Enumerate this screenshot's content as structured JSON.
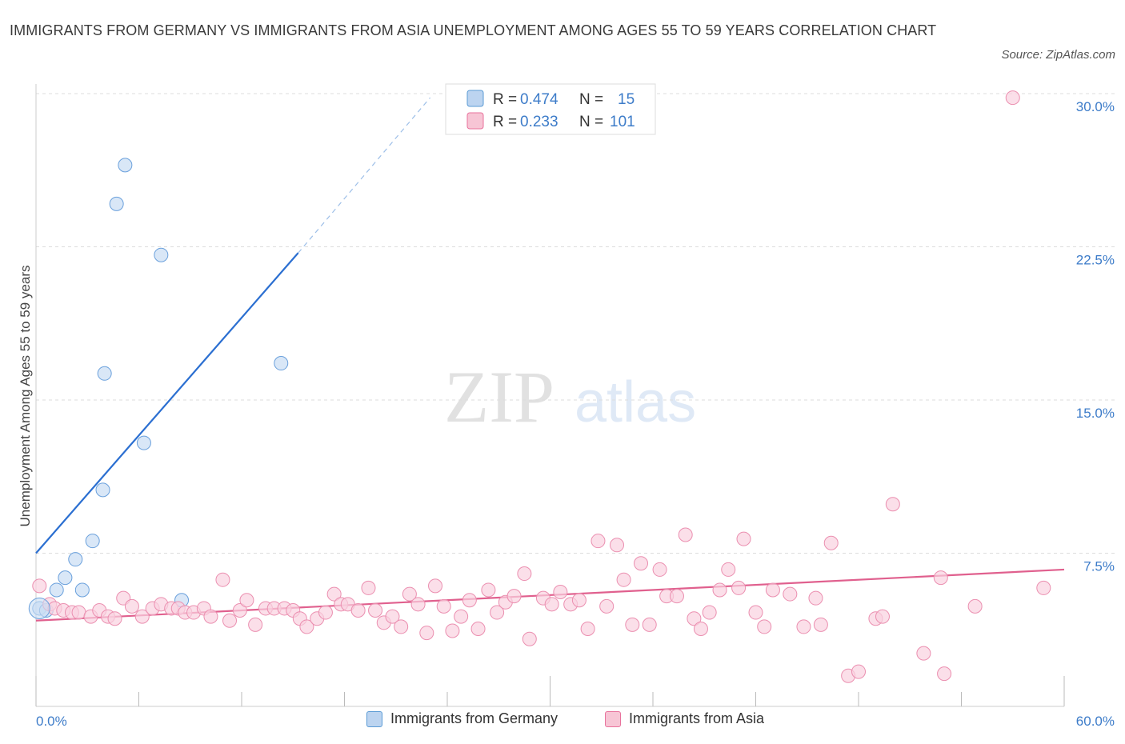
{
  "title": "IMMIGRANTS FROM GERMANY VS IMMIGRANTS FROM ASIA UNEMPLOYMENT AMONG AGES 55 TO 59 YEARS CORRELATION CHART",
  "source": "Source: ZipAtlas.com",
  "watermark": {
    "zip": "ZIP",
    "atlas": "atlas"
  },
  "colors": {
    "germany": "#5b9bd5",
    "germany_fill": "#bcd4f0",
    "germany_line": "#2b6fd1",
    "asia": "#e8729c",
    "asia_fill": "#f7c5d5",
    "asia_line": "#e0608e",
    "tick": "#3d7cc9"
  },
  "legend": {
    "rows": [
      {
        "r_label": "R =",
        "r_value": "0.474",
        "n_label": "N =",
        "n_value": "15"
      },
      {
        "r_label": "R =",
        "r_value": "0.233",
        "n_label": "N =",
        "n_value": "101"
      }
    ],
    "bottom": [
      "Immigrants from Germany",
      "Immigrants from Asia"
    ]
  },
  "chart_data": {
    "type": "scatter",
    "title": "IMMIGRANTS FROM GERMANY VS IMMIGRANTS FROM ASIA UNEMPLOYMENT AMONG AGES 55 TO 59 YEARS CORRELATION CHART",
    "xlabel": "",
    "ylabel": "Unemployment Among Ages 55 to 59 years",
    "xlim": [
      0,
      60
    ],
    "ylim": [
      0,
      30
    ],
    "x_tick_labels": [
      "0.0%",
      "60.0%"
    ],
    "y_ticks": [
      7.5,
      15.0,
      22.5,
      30.0
    ],
    "y_tick_labels": [
      "7.5%",
      "15.0%",
      "22.5%",
      "30.0%"
    ],
    "series": [
      {
        "name": "Immigrants from Germany",
        "R": 0.474,
        "N": 15,
        "trend": {
          "x": [
            0,
            15.3
          ],
          "y": [
            7.5,
            22.2
          ],
          "dashed_to": [
            23,
            29.8
          ]
        },
        "points": [
          [
            0.2,
            4.8
          ],
          [
            0.6,
            4.7
          ],
          [
            1.2,
            5.7
          ],
          [
            1.7,
            6.3
          ],
          [
            2.3,
            7.2
          ],
          [
            2.7,
            5.7
          ],
          [
            3.3,
            8.1
          ],
          [
            3.9,
            10.6
          ],
          [
            4.0,
            16.3
          ],
          [
            4.7,
            24.6
          ],
          [
            5.2,
            26.5
          ],
          [
            6.3,
            12.9
          ],
          [
            7.3,
            22.1
          ],
          [
            8.5,
            5.2
          ],
          [
            14.3,
            16.8
          ]
        ]
      },
      {
        "name": "Immigrants from Asia",
        "R": 0.233,
        "N": 101,
        "trend": {
          "x": [
            0,
            60
          ],
          "y": [
            4.2,
            6.7
          ]
        },
        "points": [
          [
            0.2,
            5.9
          ],
          [
            0.8,
            5.0
          ],
          [
            1.1,
            4.8
          ],
          [
            1.6,
            4.7
          ],
          [
            2.1,
            4.6
          ],
          [
            2.5,
            4.6
          ],
          [
            3.2,
            4.4
          ],
          [
            3.7,
            4.7
          ],
          [
            4.2,
            4.4
          ],
          [
            4.6,
            4.3
          ],
          [
            5.1,
            5.3
          ],
          [
            5.6,
            4.9
          ],
          [
            6.2,
            4.4
          ],
          [
            6.8,
            4.8
          ],
          [
            7.3,
            5.0
          ],
          [
            7.9,
            4.8
          ],
          [
            8.3,
            4.8
          ],
          [
            8.7,
            4.6
          ],
          [
            9.2,
            4.6
          ],
          [
            9.8,
            4.8
          ],
          [
            10.2,
            4.4
          ],
          [
            10.9,
            6.2
          ],
          [
            11.3,
            4.2
          ],
          [
            11.9,
            4.7
          ],
          [
            12.3,
            5.2
          ],
          [
            12.8,
            4.0
          ],
          [
            13.4,
            4.8
          ],
          [
            13.9,
            4.8
          ],
          [
            14.5,
            4.8
          ],
          [
            15.0,
            4.7
          ],
          [
            15.4,
            4.3
          ],
          [
            15.8,
            3.9
          ],
          [
            16.4,
            4.3
          ],
          [
            16.9,
            4.6
          ],
          [
            17.4,
            5.5
          ],
          [
            17.8,
            5.0
          ],
          [
            18.2,
            5.0
          ],
          [
            18.8,
            4.7
          ],
          [
            19.4,
            5.8
          ],
          [
            19.8,
            4.7
          ],
          [
            20.3,
            4.1
          ],
          [
            20.8,
            4.4
          ],
          [
            21.3,
            3.9
          ],
          [
            21.8,
            5.5
          ],
          [
            22.3,
            5.0
          ],
          [
            22.8,
            3.6
          ],
          [
            23.3,
            5.9
          ],
          [
            23.8,
            4.9
          ],
          [
            24.3,
            3.7
          ],
          [
            24.8,
            4.4
          ],
          [
            25.3,
            5.2
          ],
          [
            25.8,
            3.8
          ],
          [
            26.4,
            5.7
          ],
          [
            26.9,
            4.6
          ],
          [
            27.4,
            5.1
          ],
          [
            27.9,
            5.4
          ],
          [
            28.5,
            6.5
          ],
          [
            28.8,
            3.3
          ],
          [
            29.6,
            5.3
          ],
          [
            30.1,
            5.0
          ],
          [
            30.6,
            5.6
          ],
          [
            31.2,
            5.0
          ],
          [
            31.7,
            5.2
          ],
          [
            32.2,
            3.8
          ],
          [
            32.8,
            8.1
          ],
          [
            33.3,
            4.9
          ],
          [
            33.9,
            7.9
          ],
          [
            34.3,
            6.2
          ],
          [
            34.8,
            4.0
          ],
          [
            35.3,
            7.0
          ],
          [
            35.8,
            4.0
          ],
          [
            36.4,
            6.7
          ],
          [
            36.8,
            5.4
          ],
          [
            37.4,
            5.4
          ],
          [
            37.9,
            8.4
          ],
          [
            38.4,
            4.3
          ],
          [
            38.8,
            3.8
          ],
          [
            39.3,
            4.6
          ],
          [
            39.9,
            5.7
          ],
          [
            40.4,
            6.7
          ],
          [
            41.0,
            5.8
          ],
          [
            41.3,
            8.2
          ],
          [
            42.0,
            4.6
          ],
          [
            42.5,
            3.9
          ],
          [
            43.0,
            5.7
          ],
          [
            44.0,
            5.5
          ],
          [
            44.8,
            3.9
          ],
          [
            45.5,
            5.3
          ],
          [
            45.8,
            4.0
          ],
          [
            46.4,
            8.0
          ],
          [
            47.4,
            1.5
          ],
          [
            48.0,
            1.7
          ],
          [
            49.0,
            4.3
          ],
          [
            49.4,
            4.4
          ],
          [
            50.0,
            9.9
          ],
          [
            51.8,
            2.6
          ],
          [
            52.8,
            6.3
          ],
          [
            53.0,
            1.6
          ],
          [
            54.8,
            4.9
          ],
          [
            57.0,
            29.8
          ],
          [
            58.8,
            5.8
          ]
        ]
      }
    ]
  }
}
